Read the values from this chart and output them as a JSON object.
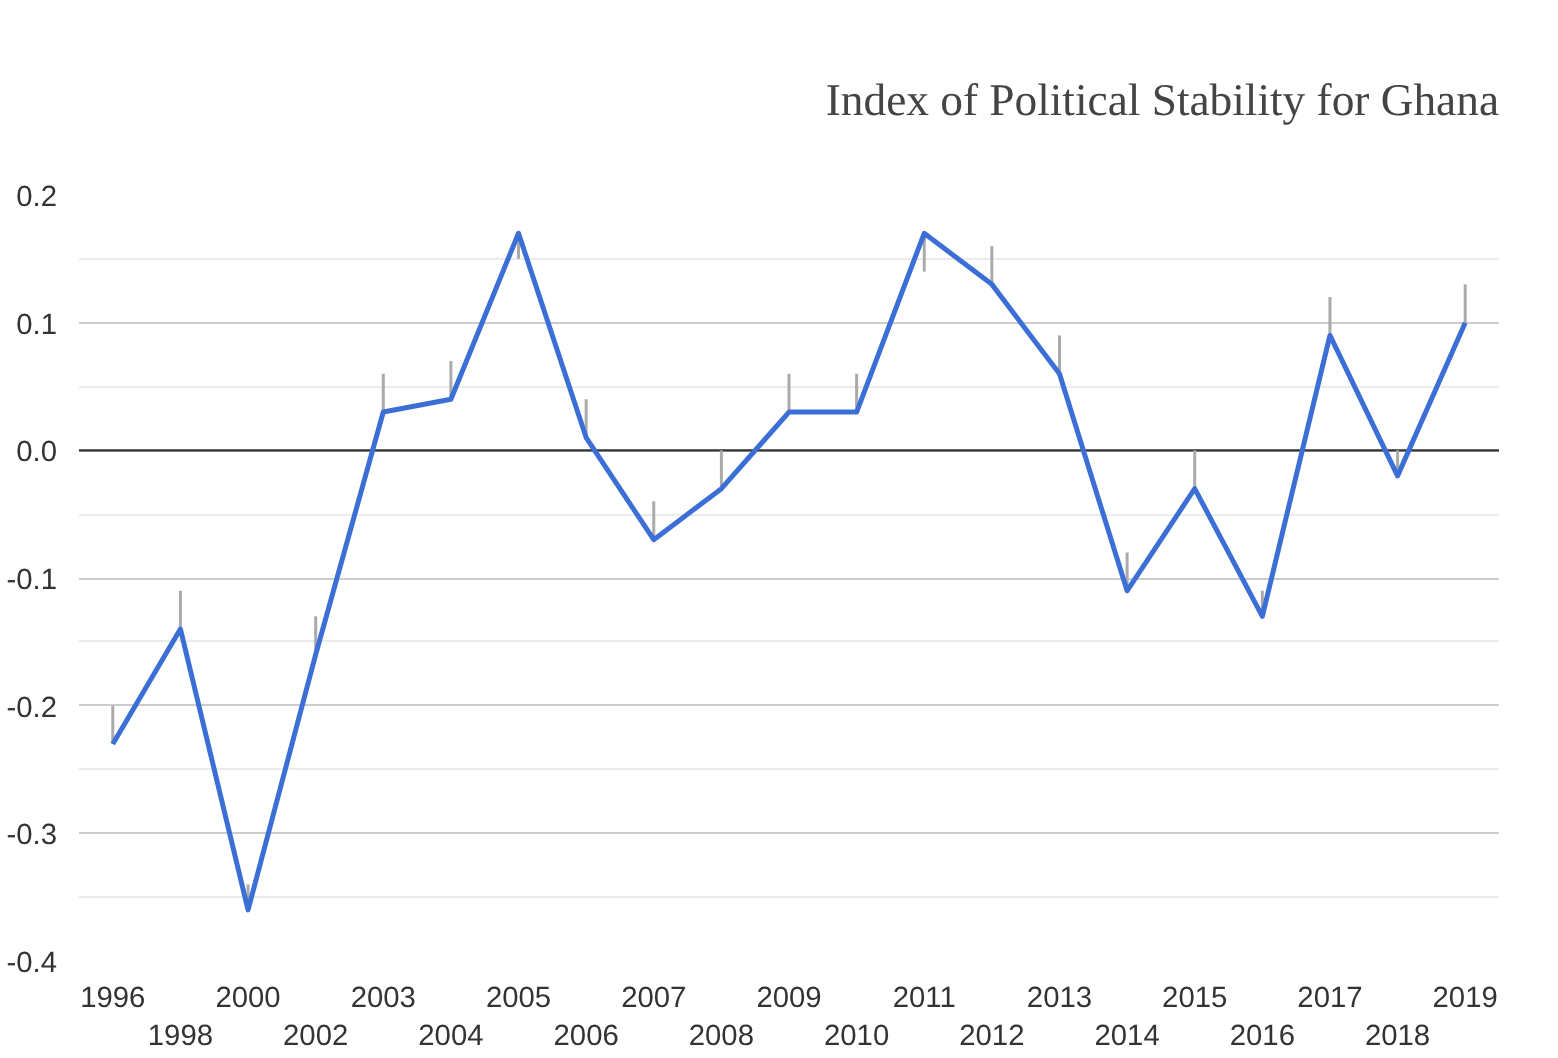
{
  "chart_data": {
    "type": "line",
    "title": "Index of Political Stability for Ghana",
    "categories": [
      "1996",
      "1998",
      "2000",
      "2002",
      "2003",
      "2004",
      "2005",
      "2006",
      "2007",
      "2008",
      "2009",
      "2010",
      "2011",
      "2012",
      "2013",
      "2014",
      "2015",
      "2016",
      "2017",
      "2018",
      "2019"
    ],
    "series": [
      {
        "color": "#3c6fd6",
        "values": [
          -0.23,
          -0.14,
          -0.36,
          -0.16,
          0.03,
          0.04,
          0.17,
          0.01,
          -0.07,
          -0.03,
          0.03,
          0.03,
          0.17,
          0.13,
          0.06,
          -0.11,
          -0.03,
          -0.13,
          0.09,
          -0.02,
          0.1
        ],
        "errors": [
          [
            -0.23,
            -0.2
          ],
          [
            -0.14,
            -0.11
          ],
          [
            -0.36,
            -0.34
          ],
          [
            -0.16,
            -0.13
          ],
          [
            0.03,
            0.06
          ],
          [
            0.04,
            0.07
          ],
          [
            0.15,
            0.17
          ],
          [
            0.01,
            0.04
          ],
          [
            -0.07,
            -0.04
          ],
          [
            -0.03,
            0.0
          ],
          [
            0.03,
            0.06
          ],
          [
            0.03,
            0.06
          ],
          [
            0.14,
            0.17
          ],
          [
            0.13,
            0.16
          ],
          [
            0.06,
            0.09
          ],
          [
            -0.11,
            -0.08
          ],
          [
            -0.03,
            0.0
          ],
          [
            -0.13,
            -0.11
          ],
          [
            0.09,
            0.12
          ],
          [
            -0.02,
            0.0
          ],
          [
            0.1,
            0.13
          ]
        ]
      }
    ],
    "ylim": [
      -0.4,
      0.2
    ],
    "yticks": [
      {
        "value": -0.4,
        "label": "-0.4"
      },
      {
        "value": -0.3,
        "label": "-0.3"
      },
      {
        "value": -0.2,
        "label": "-0.2"
      },
      {
        "value": -0.1,
        "label": "-0.1"
      },
      {
        "value": 0,
        "label": "0.0"
      },
      {
        "value": 0.1,
        "label": "0.1"
      },
      {
        "value": 0.2,
        "label": "0.2"
      }
    ],
    "grid": "y",
    "marker": "none",
    "line_style": "solid",
    "ref_lines": [
      {
        "axis": "y",
        "value": 0,
        "color": "#333333"
      }
    ]
  }
}
